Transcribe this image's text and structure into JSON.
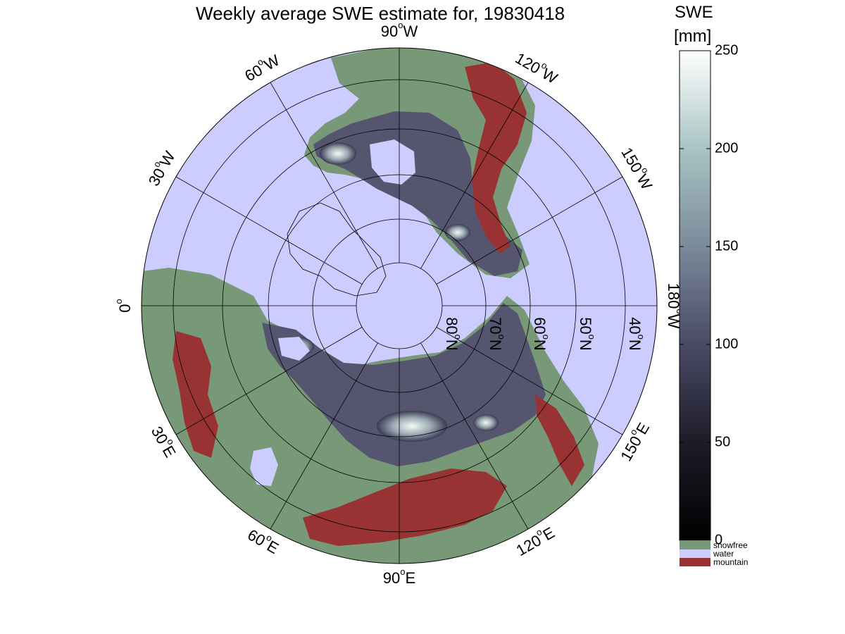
{
  "title": "Weekly average SWE estimate for, 19830418",
  "colorbar": {
    "title": "SWE",
    "unit": "[mm]",
    "ticks": [
      "250",
      "200",
      "150",
      "100",
      "50",
      "0"
    ],
    "categories": [
      {
        "label": "snowfree",
        "color": "#779977"
      },
      {
        "label": "water",
        "color": "#ccccff"
      },
      {
        "label": "mountain",
        "color": "#993333"
      }
    ]
  },
  "map": {
    "projection": "north-polar-stereographic",
    "longitude_labels": [
      {
        "deg": "90",
        "hemi": "W"
      },
      {
        "deg": "60",
        "hemi": "W"
      },
      {
        "deg": "30",
        "hemi": "W"
      },
      {
        "deg": "0",
        "hemi": ""
      },
      {
        "deg": "120",
        "hemi": "W"
      },
      {
        "deg": "150",
        "hemi": "W"
      },
      {
        "deg": "180",
        "hemi": "W"
      },
      {
        "deg": "150",
        "hemi": "E"
      },
      {
        "deg": "120",
        "hemi": "E"
      },
      {
        "deg": "90",
        "hemi": "E"
      },
      {
        "deg": "60",
        "hemi": "E"
      },
      {
        "deg": "30",
        "hemi": "E"
      }
    ],
    "latitude_labels": [
      {
        "deg": "80",
        "hemi": "N"
      },
      {
        "deg": "70",
        "hemi": "N"
      },
      {
        "deg": "60",
        "hemi": "N"
      },
      {
        "deg": "50",
        "hemi": "N"
      },
      {
        "deg": "40",
        "hemi": "N"
      }
    ],
    "colors": {
      "water": "#ccccff",
      "snowfree": "#779977",
      "mountain": "#993333",
      "swe_low": "#0d0d14",
      "swe_mid": "#555570",
      "swe_high": "#ffffff"
    }
  }
}
